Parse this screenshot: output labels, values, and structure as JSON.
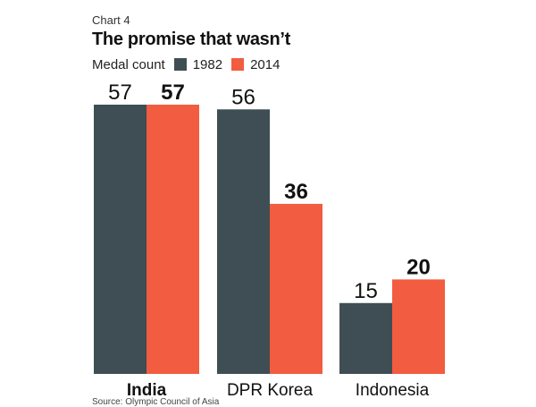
{
  "chart_number": "Chart 4",
  "title": "The promise that wasn’t",
  "legend_label": "Medal count",
  "source": "Source: Olympic Council of Asia",
  "colors": {
    "series_1982": "#3f4e54",
    "series_2014": "#f25c40"
  },
  "chart_data": {
    "type": "bar",
    "title": "The promise that wasn’t",
    "ylabel": "Medal count",
    "xlabel": "",
    "categories": [
      "India",
      "DPR Korea",
      "Indonesia"
    ],
    "series": [
      {
        "name": "1982",
        "values": [
          57,
          56,
          15
        ]
      },
      {
        "name": "2014",
        "values": [
          57,
          36,
          20
        ]
      }
    ],
    "ylim": [
      0,
      57
    ],
    "grid": false,
    "legend": "top-left"
  }
}
